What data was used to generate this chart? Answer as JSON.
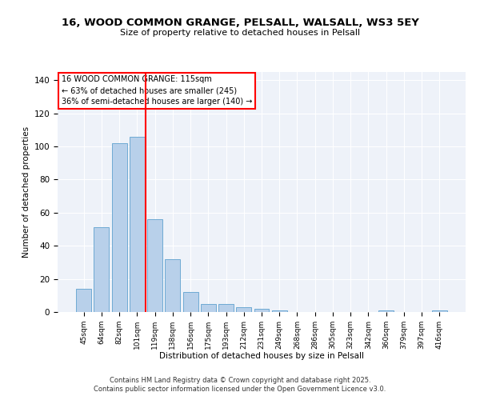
{
  "title": "16, WOOD COMMON GRANGE, PELSALL, WALSALL, WS3 5EY",
  "subtitle": "Size of property relative to detached houses in Pelsall",
  "xlabel": "Distribution of detached houses by size in Pelsall",
  "ylabel": "Number of detached properties",
  "categories": [
    "45sqm",
    "64sqm",
    "82sqm",
    "101sqm",
    "119sqm",
    "138sqm",
    "156sqm",
    "175sqm",
    "193sqm",
    "212sqm",
    "231sqm",
    "249sqm",
    "268sqm",
    "286sqm",
    "305sqm",
    "323sqm",
    "342sqm",
    "360sqm",
    "379sqm",
    "397sqm",
    "416sqm"
  ],
  "values": [
    14,
    51,
    102,
    106,
    56,
    32,
    12,
    5,
    5,
    3,
    2,
    1,
    0,
    0,
    0,
    0,
    0,
    1,
    0,
    0,
    1
  ],
  "bar_color": "#b8d0ea",
  "bar_edge_color": "#6eaad4",
  "vline_color": "red",
  "vline_pos": 3.5,
  "annotation_title": "16 WOOD COMMON GRANGE: 115sqm",
  "annotation_line1": "← 63% of detached houses are smaller (245)",
  "annotation_line2": "36% of semi-detached houses are larger (140) →",
  "ylim": [
    0,
    145
  ],
  "yticks": [
    0,
    20,
    40,
    60,
    80,
    100,
    120,
    140
  ],
  "background_color": "#eef2f9",
  "grid_color": "#ffffff",
  "footer_line1": "Contains HM Land Registry data © Crown copyright and database right 2025.",
  "footer_line2": "Contains public sector information licensed under the Open Government Licence v3.0."
}
